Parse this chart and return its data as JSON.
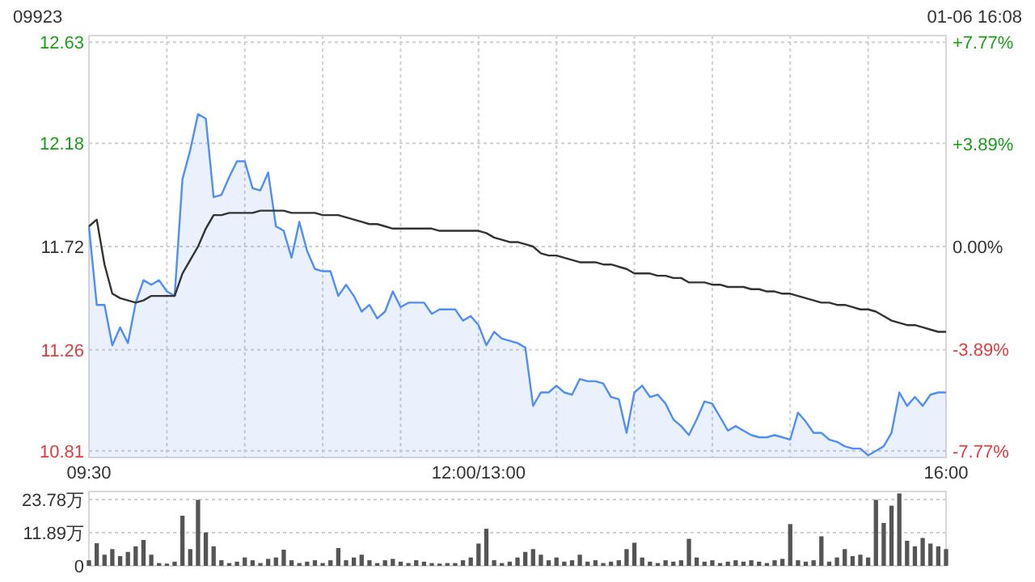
{
  "chart_data": [
    {
      "type": "line",
      "title": "09923",
      "annotations": [
        "01-06 16:08"
      ],
      "grid": true,
      "categories": [
        "09:30",
        null,
        null,
        null,
        null,
        null,
        null,
        null,
        null,
        null,
        null,
        null,
        null,
        null,
        null,
        null,
        null,
        null,
        null,
        null,
        null,
        null,
        null,
        null,
        null,
        null,
        null,
        null,
        null,
        null,
        null,
        null,
        null,
        null,
        null,
        null,
        null,
        null,
        null,
        null,
        null,
        null,
        null,
        null,
        null,
        null,
        null,
        null,
        null,
        null,
        "12:00/13:00",
        null,
        null,
        null,
        null,
        null,
        null,
        null,
        null,
        null,
        null,
        null,
        null,
        null,
        null,
        null,
        null,
        null,
        null,
        null,
        null,
        null,
        null,
        null,
        null,
        null,
        null,
        null,
        null,
        null,
        null,
        null,
        null,
        null,
        null,
        null,
        null,
        null,
        null,
        null,
        null,
        null,
        null,
        null,
        null,
        null,
        null,
        null,
        null,
        null,
        null,
        null,
        null,
        null,
        null,
        null,
        null,
        null,
        null,
        null,
        "16:00"
      ],
      "ylim": [
        10.78,
        12.66
      ],
      "yticks": [
        10.81,
        11.26,
        11.72,
        12.18,
        12.63
      ],
      "y2lim": [
        -8.02,
        8.02
      ],
      "y2ticks": [
        {
          "value": -7.77,
          "label": "-7.77%"
        },
        {
          "value": -3.89,
          "label": "-3.89%"
        },
        {
          "value": 0,
          "label": "0.00%"
        },
        {
          "value": 3.89,
          "label": "+3.89%"
        },
        {
          "value": 7.77,
          "label": "+7.77%"
        }
      ],
      "series": [
        {
          "type": "area",
          "color": "#4f8ef2",
          "values": [
            11.81,
            11.46,
            11.46,
            11.28,
            11.36,
            11.29,
            11.47,
            11.57,
            11.55,
            11.57,
            11.52,
            11.5,
            12.02,
            12.15,
            12.31,
            12.29,
            11.94,
            11.95,
            12.03,
            12.1,
            12.1,
            11.98,
            11.97,
            12.05,
            11.81,
            11.79,
            11.67,
            11.83,
            11.7,
            11.62,
            11.61,
            11.61,
            11.5,
            11.55,
            11.5,
            11.43,
            11.46,
            11.4,
            11.43,
            11.52,
            11.45,
            11.47,
            11.47,
            11.47,
            11.42,
            11.44,
            11.44,
            11.44,
            11.39,
            11.41,
            11.37,
            11.28,
            11.34,
            11.31,
            11.3,
            11.29,
            11.27,
            11.01,
            11.07,
            11.07,
            11.1,
            11.07,
            11.06,
            11.13,
            11.12,
            11.12,
            11.11,
            11.05,
            11.04,
            10.89,
            11.07,
            11.1,
            11.05,
            11.06,
            11.02,
            10.95,
            10.92,
            10.88,
            10.95,
            11.03,
            11.02,
            10.96,
            10.9,
            10.92,
            10.9,
            10.88,
            10.87,
            10.87,
            10.88,
            10.87,
            10.86,
            10.98,
            10.94,
            10.89,
            10.89,
            10.86,
            10.85,
            10.83,
            10.82,
            10.82,
            10.79,
            10.81,
            10.83,
            10.89,
            11.07,
            11.01,
            11.05,
            11.01,
            11.06,
            11.07,
            11.07
          ]
        },
        {
          "type": "line",
          "color": "#333333",
          "values": [
            11.81,
            11.84,
            11.64,
            11.51,
            11.49,
            11.48,
            11.47,
            11.48,
            11.5,
            11.5,
            11.5,
            11.5,
            11.6,
            11.66,
            11.72,
            11.8,
            11.86,
            11.86,
            11.87,
            11.87,
            11.87,
            11.87,
            11.88,
            11.88,
            11.88,
            11.88,
            11.87,
            11.87,
            11.87,
            11.87,
            11.86,
            11.86,
            11.86,
            11.85,
            11.84,
            11.83,
            11.82,
            11.82,
            11.81,
            11.8,
            11.8,
            11.8,
            11.8,
            11.8,
            11.8,
            11.79,
            11.79,
            11.79,
            11.79,
            11.79,
            11.79,
            11.78,
            11.76,
            11.75,
            11.74,
            11.74,
            11.73,
            11.72,
            11.69,
            11.68,
            11.68,
            11.67,
            11.66,
            11.65,
            11.65,
            11.65,
            11.64,
            11.64,
            11.63,
            11.62,
            11.6,
            11.6,
            11.6,
            11.59,
            11.59,
            11.58,
            11.58,
            11.56,
            11.56,
            11.56,
            11.55,
            11.55,
            11.54,
            11.54,
            11.54,
            11.53,
            11.53,
            11.52,
            11.52,
            11.51,
            11.51,
            11.5,
            11.49,
            11.48,
            11.47,
            11.47,
            11.46,
            11.46,
            11.45,
            11.44,
            11.44,
            11.43,
            11.41,
            11.39,
            11.38,
            11.37,
            11.37,
            11.36,
            11.35,
            11.34,
            11.34
          ]
        }
      ]
    },
    {
      "type": "bar",
      "grid": "y",
      "color": "#555555",
      "categories": [
        null,
        null,
        null,
        null,
        null,
        null,
        null,
        null,
        null,
        null,
        null,
        null,
        null,
        null,
        null,
        null,
        null,
        null,
        null,
        null,
        null,
        null,
        null,
        null,
        null,
        null,
        null,
        null,
        null,
        null,
        null,
        null,
        null,
        null,
        null,
        null,
        null,
        null,
        null,
        null,
        null,
        null,
        null,
        null,
        null,
        null,
        null,
        null,
        null,
        null,
        null,
        null,
        null,
        null,
        null,
        null,
        null,
        null,
        null,
        null,
        null,
        null,
        null,
        null,
        null,
        null,
        null,
        null,
        null,
        null,
        null,
        null,
        null,
        null,
        null,
        null,
        null,
        null,
        null,
        null,
        null,
        null,
        null,
        null,
        null,
        null,
        null,
        null,
        null,
        null,
        null,
        null,
        null,
        null,
        null,
        null,
        null,
        null,
        null,
        null,
        null,
        null,
        null,
        null,
        null,
        null,
        null,
        null,
        null,
        null,
        null
      ],
      "ylim": [
        0,
        26.7
      ],
      "yticks": [
        0,
        {
          "value": 11.89,
          "label": "11.89万"
        },
        {
          "value": 23.78,
          "label": "23.78万"
        }
      ],
      "values": [
        2,
        8.1,
        4,
        6,
        3.5,
        5,
        7,
        9.3,
        4,
        1,
        0.8,
        1.5,
        18,
        6,
        23.7,
        12,
        7,
        2,
        1,
        1.5,
        3,
        2,
        1,
        2.5,
        3,
        5.8,
        2,
        1,
        1.5,
        2,
        1,
        2,
        6.4,
        2,
        3,
        4,
        2,
        1,
        2,
        2.5,
        1.5,
        1,
        2,
        1.5,
        1,
        0.8,
        1,
        1,
        2,
        3,
        8,
        13.3,
        2,
        1,
        1.5,
        3,
        5,
        6,
        4,
        2,
        3,
        1.5,
        2,
        4,
        1.5,
        2,
        1,
        1.5,
        2,
        6,
        8.3,
        3,
        1.5,
        1,
        2,
        1.5,
        2,
        9.7,
        3,
        1.5,
        2,
        1,
        1.5,
        2,
        1.5,
        2,
        1.5,
        1,
        2,
        2.5,
        15,
        2,
        1.5,
        2,
        10.6,
        1.5,
        3,
        6,
        3.5,
        4,
        3,
        23.7,
        15.4,
        21.6,
        26,
        9,
        7,
        10,
        8,
        7,
        6
      ]
    }
  ]
}
